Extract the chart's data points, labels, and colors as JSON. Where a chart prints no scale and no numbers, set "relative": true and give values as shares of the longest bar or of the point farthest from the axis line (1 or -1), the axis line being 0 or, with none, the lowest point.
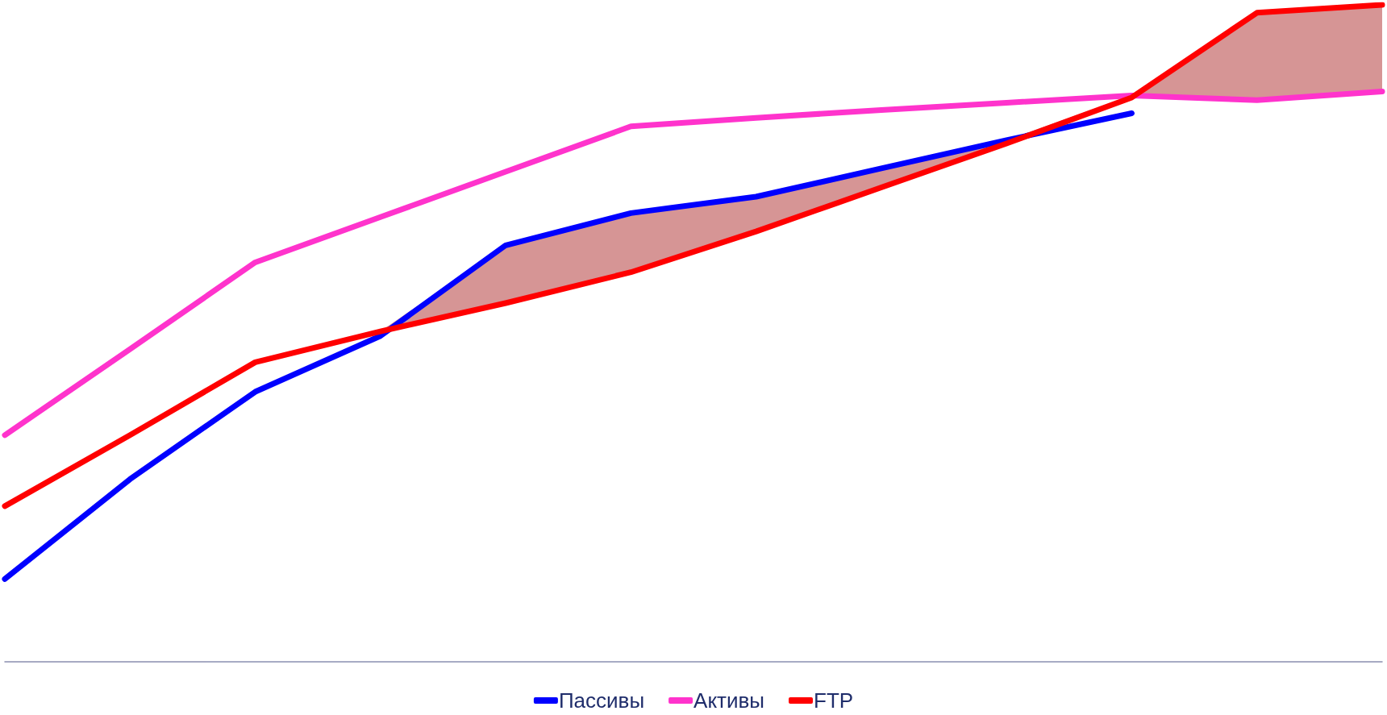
{
  "chart_data": {
    "type": "line",
    "relative": true,
    "legend": "bottom",
    "categories": [
      null,
      null,
      null,
      null,
      null,
      null,
      null,
      null,
      null,
      null,
      null,
      null
    ],
    "series": [
      {
        "name": "Пассивы",
        "color": "#0000ff",
        "values": [
          0.126,
          0.278,
          0.411,
          0.496,
          0.634,
          0.683,
          0.708,
          0.751,
          0.794,
          0.835,
          null,
          null
        ]
      },
      {
        "name": "Активы",
        "color": "#ff33cc",
        "values": [
          0.345,
          0.476,
          0.608,
          0.677,
          0.746,
          0.815,
          0.828,
          0.84,
          0.851,
          0.862,
          0.855,
          0.868
        ]
      },
      {
        "name": "FTP",
        "color": "#ff0000",
        "values": [
          0.237,
          0.345,
          0.456,
          0.503,
          0.546,
          0.593,
          0.655,
          0.722,
          0.789,
          0.859,
          0.988,
          1
        ],
        "lower": [
          null,
          null,
          null,
          0.503,
          0.546,
          0.593,
          0.655,
          0.722,
          0.789,
          0.859,
          0.855,
          0.868
        ],
        "upper": [
          null,
          null,
          null,
          0.503,
          0.634,
          0.683,
          0.708,
          0.751,
          0.794,
          0.862,
          0.988,
          1
        ]
      }
    ]
  }
}
